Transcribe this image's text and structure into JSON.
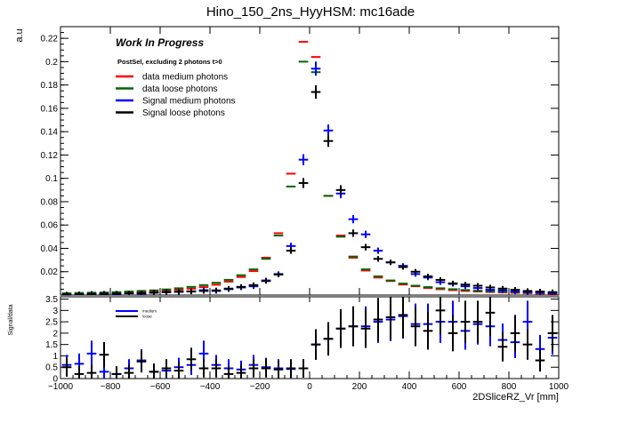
{
  "chart_data": [
    {
      "type": "scatter",
      "panel": "main",
      "title": "Hino_150_2ns_HyyHSM: mc16ade",
      "ylabel": "a.u",
      "xlabel": "",
      "xlim": [
        -1000,
        1000
      ],
      "ylim": [
        0,
        0.23
      ],
      "yticks": [
        0.02,
        0.04,
        0.06,
        0.08,
        0.1,
        0.12,
        0.14,
        0.16,
        0.18,
        0.2,
        0.22
      ],
      "ytick_labels": [
        "0.02",
        "0.04",
        "0.06",
        "0.08",
        "0.1",
        "0.12",
        "0.14",
        "0.16",
        "0.18",
        "0.2",
        "0.22"
      ],
      "grid": false,
      "annotations": {
        "work_in_progress": "Work In Progress",
        "selection": "PostSel, excluding 2 photons t>0"
      },
      "legend_position": "top-left",
      "bin_centers": [
        -975,
        -925,
        -875,
        -825,
        -775,
        -725,
        -675,
        -625,
        -575,
        -525,
        -475,
        -425,
        -375,
        -325,
        -275,
        -225,
        -175,
        -125,
        -75,
        -25,
        25,
        75,
        125,
        175,
        225,
        275,
        325,
        375,
        425,
        475,
        525,
        575,
        625,
        675,
        725,
        775,
        825,
        875,
        925,
        975
      ],
      "series": [
        {
          "name": "data medium photons",
          "color": "#ff0000",
          "values": [
            0.0005,
            0.0008,
            0.0009,
            0.0012,
            0.0015,
            0.002,
            0.0025,
            0.003,
            0.0037,
            0.0045,
            0.0055,
            0.0068,
            0.0088,
            0.0115,
            0.0155,
            0.0205,
            0.032,
            0.053,
            0.104,
            0.217,
            0.204,
            0.085,
            0.051,
            0.032,
            0.021,
            0.015,
            0.012,
            0.009,
            0.0075,
            0.006,
            0.005,
            0.0042,
            0.0035,
            0.003,
            0.0026,
            0.0022,
            0.0019,
            0.0016,
            0.0013,
            0.001
          ]
        },
        {
          "name": "data loose photons",
          "color": "#006600",
          "values": [
            0.0015,
            0.0018,
            0.002,
            0.0022,
            0.0025,
            0.003,
            0.0035,
            0.004,
            0.0048,
            0.0058,
            0.007,
            0.0085,
            0.0105,
            0.013,
            0.017,
            0.022,
            0.031,
            0.051,
            0.093,
            0.2,
            0.191,
            0.085,
            0.05,
            0.033,
            0.022,
            0.016,
            0.0125,
            0.0098,
            0.008,
            0.0068,
            0.0058,
            0.005,
            0.0043,
            0.0037,
            0.0032,
            0.0028,
            0.0025,
            0.0022,
            0.0019,
            0.0017
          ]
        },
        {
          "name": "Signal medium photons",
          "color": "#0000ff",
          "values": [
            0.0003,
            0.0005,
            0.001,
            0.0012,
            0.0008,
            0.0015,
            0.0012,
            0.002,
            0.0025,
            0.0028,
            0.003,
            0.0042,
            0.0035,
            0.005,
            0.0065,
            0.0075,
            0.0125,
            0.018,
            0.042,
            0.116,
            0.194,
            0.141,
            0.087,
            0.065,
            0.052,
            0.038,
            0.028,
            0.025,
            0.018,
            0.015,
            0.011,
            0.0095,
            0.0075,
            0.006,
            0.0045,
            0.004,
            0.003,
            0.0025,
            0.002,
            0.0015
          ]
        },
        {
          "name": "Signal loose photons",
          "color": "#000000",
          "values": [
            0.0004,
            0.0006,
            0.0009,
            0.001,
            0.0012,
            0.0015,
            0.0017,
            0.002,
            0.0025,
            0.0028,
            0.0032,
            0.0035,
            0.004,
            0.0055,
            0.007,
            0.0085,
            0.012,
            0.0175,
            0.038,
            0.096,
            0.174,
            0.132,
            0.09,
            0.053,
            0.041,
            0.031,
            0.028,
            0.024,
            0.02,
            0.016,
            0.013,
            0.01,
            0.009,
            0.008,
            0.0065,
            0.0055,
            0.0045,
            0.0035,
            0.003,
            0.0025
          ]
        }
      ]
    },
    {
      "type": "scatter",
      "panel": "ratio",
      "ylabel": "Signal/data",
      "xlabel": "2DSliceRZ_Vr [mm]",
      "xlim": [
        -1000,
        1000
      ],
      "ylim": [
        0,
        3.6
      ],
      "xticks": [
        -1000,
        -800,
        -600,
        -400,
        -200,
        0,
        200,
        400,
        600,
        800,
        1000
      ],
      "xtick_labels": [
        "−1000",
        "−800",
        "−600",
        "−400",
        "−200",
        "0",
        "200",
        "400",
        "600",
        "800",
        "1000"
      ],
      "yticks": [
        0,
        0.5,
        1,
        1.5,
        2,
        2.5,
        3,
        3.5
      ],
      "ytick_labels": [
        "0",
        "0.5",
        "1",
        "1.5",
        "2",
        "2.5",
        "3",
        "3.5"
      ],
      "legend_position": "top-left",
      "bin_centers": [
        -975,
        -925,
        -875,
        -825,
        -775,
        -725,
        -675,
        -625,
        -575,
        -525,
        -475,
        -425,
        -375,
        -325,
        -275,
        -225,
        -175,
        -125,
        -75,
        -25,
        25,
        75,
        125,
        175,
        225,
        275,
        325,
        375,
        425,
        475,
        525,
        575,
        625,
        675,
        725,
        775,
        825,
        875,
        925,
        975
      ],
      "series": [
        {
          "name": "medium",
          "color": "#0000ff",
          "values": [
            0.6,
            0.65,
            1.1,
            0.3,
            0.2,
            0.45,
            0.8,
            0.3,
            0.35,
            0.5,
            0.6,
            1.1,
            0.6,
            0.45,
            0.4,
            0.6,
            0.5,
            0.45,
            0.42,
            0.45,
            1.5,
            1.75,
            2.2,
            2.3,
            2.3,
            2.5,
            2.6,
            2.75,
            2.4,
            2.4,
            2.5,
            2.5,
            2.1,
            2.4,
            2.3,
            1.7,
            1.6,
            2.5,
            1.3,
            1.8
          ]
        },
        {
          "name": "loose",
          "color": "#000000",
          "values": [
            0.5,
            0.2,
            0.25,
            1.05,
            0.2,
            0.25,
            0.75,
            0.3,
            0.45,
            0.35,
            0.85,
            0.45,
            0.45,
            0.2,
            0.25,
            0.45,
            0.45,
            0.4,
            0.45,
            0.45,
            1.5,
            1.75,
            2.2,
            2.3,
            2.2,
            2.6,
            2.7,
            2.8,
            2.3,
            2.1,
            3.0,
            2.0,
            2.5,
            2.5,
            2.9,
            1.4,
            2.0,
            1.5,
            0.8,
            2.0
          ]
        }
      ]
    }
  ]
}
